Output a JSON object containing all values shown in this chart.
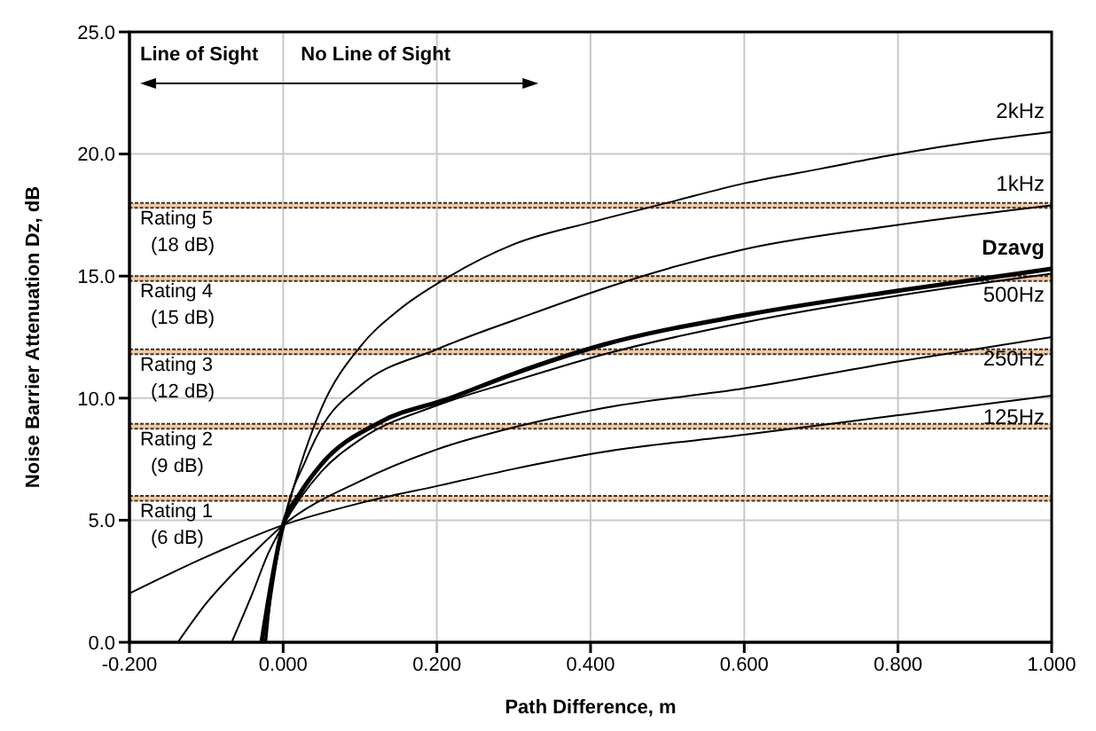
{
  "chart_data": {
    "type": "line",
    "xlabel": "Path Difference, m",
    "ylabel": "Noise Barrier Attenuation Dz, dB",
    "xlim": [
      -0.2,
      1.0
    ],
    "xticks": [
      {
        "value": -0.2,
        "label": "-0.200"
      },
      {
        "value": 0,
        "label": "0.000"
      },
      {
        "value": 0.2,
        "label": "0.200"
      },
      {
        "value": 0.4,
        "label": "0.400"
      },
      {
        "value": 0.6,
        "label": "0.600"
      },
      {
        "value": 0.8,
        "label": "0.800"
      },
      {
        "value": 1.0,
        "label": "1.000"
      }
    ],
    "ylim": [
      0,
      25
    ],
    "yticks": [
      {
        "value": 0,
        "label": "0.0"
      },
      {
        "value": 5,
        "label": "5.0"
      },
      {
        "value": 10,
        "label": "10.0"
      },
      {
        "value": 15,
        "label": "15.0"
      },
      {
        "value": 20,
        "label": "20.0"
      },
      {
        "value": 25,
        "label": "25.0"
      }
    ],
    "grid": true,
    "marker": "none",
    "line_style": "solid",
    "series": [
      {
        "name": "2kHz",
        "color": "#000000",
        "x": [
          -0.022,
          -0.015,
          -0.008,
          0,
          0.05,
          0.1,
          0.15,
          0.217,
          0.3,
          0.4,
          0.5,
          0.6,
          0.7,
          0.8,
          0.9,
          1.0
        ],
        "values": [
          0,
          2.2,
          3.8,
          4.8,
          9.6,
          12.1,
          13.6,
          15.0,
          16.3,
          17.2,
          18.0,
          18.8,
          19.4,
          20.0,
          20.5,
          20.9
        ]
      },
      {
        "name": "1kHz",
        "color": "#000000",
        "x": [
          -0.024,
          -0.01,
          0,
          0.03,
          0.05,
          0.1,
          0.2,
          0.31,
          0.418,
          0.5,
          0.6,
          0.8,
          1.0
        ],
        "values": [
          0,
          3.0,
          4.8,
          7.5,
          8.8,
          10.5,
          12.0,
          13.3,
          14.5,
          15.3,
          16.1,
          17.1,
          17.9
        ]
      },
      {
        "name": "500Hz",
        "color": "#000000",
        "x": [
          -0.067,
          -0.04,
          -0.02,
          0,
          0.05,
          0.1,
          0.2,
          0.3,
          0.418,
          0.6,
          0.8,
          1.0
        ],
        "values": [
          0,
          2.0,
          3.6,
          4.8,
          7.0,
          8.3,
          9.7,
          10.7,
          11.8,
          13.1,
          14.2,
          15.1
        ]
      },
      {
        "name": "250Hz",
        "color": "#000000",
        "x": [
          -0.137,
          -0.1,
          -0.05,
          0,
          0.1,
          0.2,
          0.3,
          0.418,
          0.6,
          0.8,
          1.0
        ],
        "values": [
          0,
          1.6,
          3.3,
          4.8,
          6.6,
          7.9,
          8.8,
          9.6,
          10.4,
          11.5,
          12.5
        ]
      },
      {
        "name": "125Hz",
        "color": "#000000",
        "x": [
          -0.2,
          -0.1,
          0,
          0.1,
          0.2,
          0.3,
          0.418,
          0.6,
          0.8,
          1.0
        ],
        "values": [
          2.0,
          3.5,
          4.8,
          5.7,
          6.4,
          7.1,
          7.8,
          8.5,
          9.3,
          10.1
        ]
      },
      {
        "name": "Dzavg",
        "color": "#000000",
        "x": [
          -0.028,
          -0.015,
          0,
          0.02,
          0.05,
          0.125,
          0.217,
          0.3,
          0.418,
          0.6,
          0.8,
          1.0
        ],
        "values": [
          0,
          2.5,
          4.8,
          6.0,
          7.3,
          9.0,
          10.0,
          11.0,
          12.2,
          13.4,
          14.4,
          15.3
        ]
      }
    ],
    "bands": [
      {
        "axis": "y",
        "from": 5.8,
        "to": 6.0,
        "label": "Rating 1 (6 dB)",
        "color": "#f8c89a"
      },
      {
        "axis": "y",
        "from": 8.75,
        "to": 8.95,
        "label": "Rating 2 (9 dB)",
        "color": "#f8c89a"
      },
      {
        "axis": "y",
        "from": 11.8,
        "to": 12.0,
        "label": "Rating 3 (12 dB)",
        "color": "#f8c89a"
      },
      {
        "axis": "y",
        "from": 14.8,
        "to": 15.0,
        "label": "Rating 4 (15 dB)",
        "color": "#f8c89a"
      },
      {
        "axis": "y",
        "from": 17.8,
        "to": 18.0,
        "label": "Rating 5 (18 dB)",
        "color": "#f8c89a"
      }
    ],
    "annotations": [
      "Line of Sight",
      "No Line of Sight"
    ]
  }
}
